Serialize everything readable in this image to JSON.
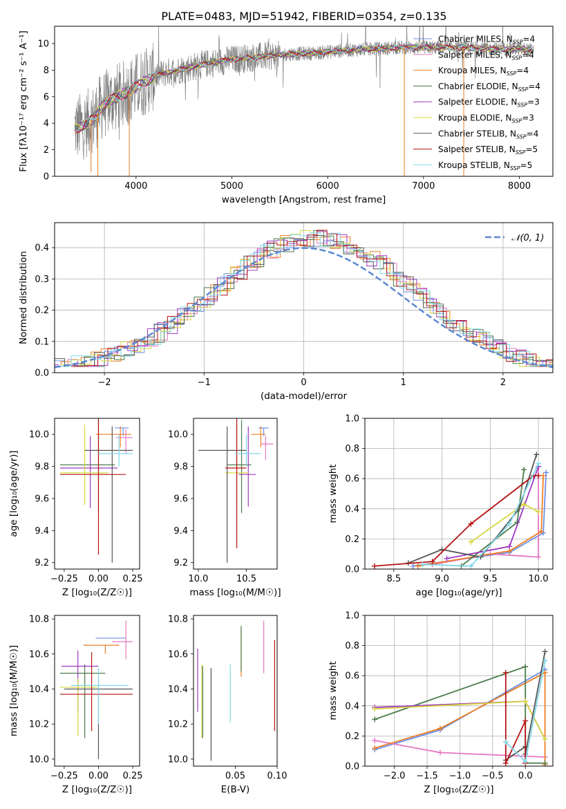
{
  "title": "PLATE=0483, MJD=51942, FIBERID=0354, z=0.135",
  "colors": {
    "Chabrier MILES": "#6b8ee6",
    "Salpeter MILES": "#e377c2",
    "Kroupa MILES": "#ee7e22",
    "Chabrier ELODIE": "#4a7a4a",
    "Salpeter ELODIE": "#9e37c1",
    "Kroupa ELODIE": "#d7d63e",
    "Chabrier STELIB": "#555555",
    "Salpeter STELIB": "#b51212",
    "Kroupa STELIB": "#7fd8e8",
    "data": "#808080"
  },
  "chart_data": [
    {
      "type": "line",
      "panel": "spectrum",
      "title": "PLATE=0483, MJD=51942, FIBERID=0354, z=0.135",
      "xlabel": "wavelength [Angstrom, rest frame]",
      "ylabel": "Flux [fλ10⁻¹⁷ erg cm⁻² s⁻¹ A⁻¹]",
      "xlim": [
        3150,
        8350
      ],
      "ylim": [
        0,
        11.3
      ],
      "xticks": [
        "4000",
        "5000",
        "6000",
        "7000",
        "8000"
      ],
      "yticks": [
        "0",
        "2",
        "4",
        "6",
        "8",
        "10"
      ],
      "legend_position": "right",
      "legend": [
        {
          "name": "Chabrier MILES",
          "label": "Chabrier MILES, N",
          "sub": "SSP",
          "tail": "=4"
        },
        {
          "name": "Salpeter MILES",
          "label": "Salpeter MILES, N",
          "sub": "SSP",
          "tail": "=4"
        },
        {
          "name": "Kroupa MILES",
          "label": "Kroupa MILES, N",
          "sub": "SSP",
          "tail": "=4"
        },
        {
          "name": "Chabrier ELODIE",
          "label": "Chabrier ELODIE, N",
          "sub": "SSP",
          "tail": "=4"
        },
        {
          "name": "Salpeter ELODIE",
          "label": "Salpeter ELODIE, N",
          "sub": "SSP",
          "tail": "=3"
        },
        {
          "name": "Kroupa ELODIE",
          "label": "Kroupa ELODIE, N",
          "sub": "SSP",
          "tail": "=3"
        },
        {
          "name": "Chabrier STELIB",
          "label": "Chabrier STELIB, N",
          "sub": "SSP",
          "tail": "=4"
        },
        {
          "name": "Salpeter STELIB",
          "label": "Salpeter STELIB, N",
          "sub": "SSP",
          "tail": "=5"
        },
        {
          "name": "Kroupa STELIB",
          "label": "Kroupa STELIB, N",
          "sub": "SSP",
          "tail": "=5"
        }
      ],
      "continuum": {
        "x": [
          3350,
          3450,
          3550,
          3650,
          3750,
          3900,
          4050,
          4250,
          4500,
          4750,
          5000,
          5300,
          5600,
          5900,
          6200,
          6500,
          6800,
          7100,
          7400,
          7700,
          8000,
          8100
        ],
        "y": [
          3.6,
          3.8,
          4.3,
          5.3,
          5.8,
          6.3,
          7.0,
          7.7,
          8.1,
          8.5,
          8.8,
          9.0,
          9.2,
          9.3,
          9.5,
          9.6,
          9.7,
          9.7,
          9.7,
          9.6,
          9.6,
          9.5
        ]
      }
    },
    {
      "type": "line",
      "panel": "residual-histogram",
      "xlabel": "(data-model)/error",
      "ylabel": "Normed distribution",
      "xlim": [
        -2.5,
        2.5
      ],
      "ylim": [
        0,
        0.48
      ],
      "xticks": [
        "−2",
        "−1",
        "0",
        "1",
        "2"
      ],
      "yticks": [
        "0.0",
        "0.1",
        "0.2",
        "0.3",
        "0.4"
      ],
      "legend": "𝒩(0, 1)",
      "grid": true
    },
    {
      "type": "scatter",
      "panel": "age-vs-Z",
      "xlabel": "Z [log₁₀(Z/Z☉)]",
      "ylabel": "age  [log₁₀(age/yr)]",
      "xlim": [
        -0.32,
        0.3
      ],
      "ylim": [
        9.16,
        10.1
      ],
      "xticks": [
        "−0.25",
        "0.00",
        "0.25"
      ],
      "yticks": [
        "9.2",
        "9.4",
        "9.6",
        "9.8",
        "10.0"
      ],
      "series": [
        {
          "name": "Chabrier MILES",
          "x": 0.18,
          "xerr": [
            0.06,
            0.04
          ],
          "y": 10.04,
          "yerr": [
            0.05,
            0.0
          ]
        },
        {
          "name": "Salpeter MILES",
          "x": 0.2,
          "xerr": [
            0.07,
            0.05
          ],
          "y": 9.98,
          "yerr": [
            0.1,
            0.05
          ]
        },
        {
          "name": "Kroupa MILES",
          "x": 0.16,
          "xerr": [
            0.18,
            0.08
          ],
          "y": 10.0,
          "yerr": [
            0.08,
            0.05
          ]
        },
        {
          "name": "Chabrier ELODIE",
          "x": 0.0,
          "xerr": [
            0.28,
            0.12
          ],
          "y": 9.81,
          "yerr": [
            0.3,
            0.28
          ]
        },
        {
          "name": "Salpeter ELODIE",
          "x": -0.06,
          "xerr": [
            0.22,
            0.2
          ],
          "y": 9.79,
          "yerr": [
            0.25,
            0.2
          ]
        },
        {
          "name": "Kroupa ELODIE",
          "x": -0.1,
          "xerr": [
            0.18,
            0.17
          ],
          "y": 9.76,
          "yerr": [
            0.2,
            0.3
          ]
        },
        {
          "name": "Chabrier STELIB",
          "x": 0.1,
          "xerr": [
            0.2,
            0.15
          ],
          "y": 9.9,
          "yerr": [
            0.7,
            0.15
          ]
        },
        {
          "name": "Salpeter STELIB",
          "x": 0.0,
          "xerr": [
            0.28,
            0.2
          ],
          "y": 9.75,
          "yerr": [
            0.5,
            0.35
          ]
        },
        {
          "name": "Kroupa STELIB",
          "x": 0.15,
          "xerr": [
            0.15,
            0.1
          ],
          "y": 9.88,
          "yerr": [
            0.08,
            0.12
          ]
        }
      ]
    },
    {
      "type": "scatter",
      "panel": "age-vs-mass",
      "xlabel": "mass [log₁₀(M/M☉)]",
      "ylabel": "",
      "xlim": [
        9.95,
        10.82
      ],
      "ylim": [
        9.16,
        10.1
      ],
      "xticks": [
        "10.0",
        "10.5"
      ],
      "yticks": [
        "9.2",
        "9.4",
        "9.6",
        "9.8",
        "10.0"
      ],
      "series": [
        {
          "name": "Chabrier MILES",
          "x": 10.68,
          "xerr": [
            0.05,
            0.05
          ],
          "y": 10.04,
          "yerr": [
            0.05,
            0.0
          ]
        },
        {
          "name": "Salpeter MILES",
          "x": 10.7,
          "xerr": [
            0.05,
            0.08
          ],
          "y": 9.94,
          "yerr": [
            0.1,
            0.05
          ]
        },
        {
          "name": "Kroupa MILES",
          "x": 10.65,
          "xerr": [
            0.1,
            0.05
          ],
          "y": 10.0,
          "yerr": [
            0.08,
            0.05
          ]
        },
        {
          "name": "Chabrier ELODIE",
          "x": 10.45,
          "xerr": [
            0.15,
            0.1
          ],
          "y": 9.81,
          "yerr": [
            0.3,
            0.28
          ]
        },
        {
          "name": "Salpeter ELODIE",
          "x": 10.52,
          "xerr": [
            0.1,
            0.08
          ],
          "y": 9.75,
          "yerr": [
            0.2,
            0.3
          ]
        },
        {
          "name": "Kroupa ELODIE",
          "x": 10.4,
          "xerr": [
            0.12,
            0.12
          ],
          "y": 9.76,
          "yerr": [
            0.2,
            0.3
          ]
        },
        {
          "name": "Chabrier STELIB",
          "x": 10.3,
          "xerr": [
            0.3,
            0.2
          ],
          "y": 9.9,
          "yerr": [
            0.7,
            0.15
          ]
        },
        {
          "name": "Salpeter STELIB",
          "x": 10.4,
          "xerr": [
            0.12,
            0.1
          ],
          "y": 9.79,
          "yerr": [
            0.5,
            0.35
          ]
        },
        {
          "name": "Kroupa STELIB",
          "x": 10.5,
          "xerr": [
            0.12,
            0.15
          ],
          "y": 9.88,
          "yerr": [
            0.08,
            0.12
          ]
        }
      ]
    },
    {
      "type": "line",
      "panel": "mass-weight-vs-age",
      "xlabel": "age  [log₁₀(age/yr)]",
      "ylabel": "mass weight",
      "xlim": [
        8.2,
        10.15
      ],
      "ylim": [
        0,
        1.0
      ],
      "xticks": [
        "8.5",
        "9.0",
        "9.5",
        "10.0"
      ],
      "yticks": [
        "0.0",
        "0.2",
        "0.4",
        "0.6",
        "0.8",
        "1.0"
      ],
      "grid": true,
      "series": [
        {
          "name": "Chabrier MILES",
          "x": [
            8.7,
            9.7,
            10.05,
            10.08
          ],
          "y": [
            0.02,
            0.11,
            0.24,
            0.64
          ]
        },
        {
          "name": "Salpeter MILES",
          "x": [
            8.9,
            9.5,
            10.0,
            10.0
          ],
          "y": [
            0.03,
            0.1,
            0.08,
            0.68
          ]
        },
        {
          "name": "Kroupa MILES",
          "x": [
            8.75,
            9.7,
            10.03,
            10.05
          ],
          "y": [
            0.02,
            0.12,
            0.25,
            0.62
          ]
        },
        {
          "name": "Chabrier ELODIE",
          "x": [
            9.2,
            9.78,
            9.85
          ],
          "y": [
            0.02,
            0.31,
            0.66
          ]
        },
        {
          "name": "Salpeter ELODIE",
          "x": [
            9.05,
            9.7,
            10.0
          ],
          "y": [
            0.07,
            0.15,
            0.68
          ]
        },
        {
          "name": "Kroupa ELODIE",
          "x": [
            9.3,
            9.85,
            10.0
          ],
          "y": [
            0.18,
            0.43,
            0.38
          ]
        },
        {
          "name": "Chabrier STELIB",
          "x": [
            8.65,
            9.0,
            9.4,
            9.8,
            9.98
          ],
          "y": [
            0.04,
            0.13,
            0.08,
            0.4,
            0.76
          ]
        },
        {
          "name": "Salpeter STELIB",
          "x": [
            8.3,
            8.9,
            9.3,
            9.95,
            10.0
          ],
          "y": [
            0.02,
            0.05,
            0.3,
            0.62,
            0.62
          ]
        },
        {
          "name": "Kroupa STELIB",
          "x": [
            8.8,
            9.3,
            9.7,
            10.0
          ],
          "y": [
            0.03,
            0.02,
            0.3,
            0.7
          ]
        }
      ]
    },
    {
      "type": "scatter",
      "panel": "mass-vs-Z",
      "xlabel": "Z [log₁₀(Z/Z☉)]",
      "ylabel": "mass [log₁₀(M/M☉)]",
      "xlim": [
        -0.32,
        0.3
      ],
      "ylim": [
        9.96,
        10.82
      ],
      "xticks": [
        "−0.25",
        "0.00",
        "0.25"
      ],
      "yticks": [
        "10.0",
        "10.2",
        "10.4",
        "10.6",
        "10.8"
      ],
      "series": [
        {
          "name": "Chabrier MILES",
          "x": 0.1,
          "xerr": [
            0.12,
            0.1
          ],
          "y": 10.69,
          "yerr": [
            0.0,
            0.0
          ]
        },
        {
          "name": "Salpeter MILES",
          "x": 0.2,
          "xerr": [
            0.1,
            0.05
          ],
          "y": 10.67,
          "yerr": [
            0.1,
            0.12
          ]
        },
        {
          "name": "Kroupa MILES",
          "x": 0.05,
          "xerr": [
            0.16,
            0.1
          ],
          "y": 10.65,
          "yerr": [
            0.05,
            0.0
          ]
        },
        {
          "name": "Chabrier ELODIE",
          "x": -0.1,
          "xerr": [
            0.18,
            0.15
          ],
          "y": 10.49,
          "yerr": [
            0.37,
            0.05
          ]
        },
        {
          "name": "Salpeter ELODIE",
          "x": -0.15,
          "xerr": [
            0.12,
            0.15
          ],
          "y": 10.53,
          "yerr": [
            0.26,
            0.09
          ]
        },
        {
          "name": "Kroupa ELODIE",
          "x": -0.15,
          "xerr": [
            0.13,
            0.14
          ],
          "y": 10.41,
          "yerr": [
            0.28,
            0.05
          ]
        },
        {
          "name": "Chabrier STELIB",
          "x": 0.0,
          "xerr": [
            0.25,
            0.25
          ],
          "y": 10.4,
          "yerr": [
            0.4,
            0.05
          ]
        },
        {
          "name": "Salpeter STELIB",
          "x": -0.05,
          "xerr": [
            0.23,
            0.3
          ],
          "y": 10.37,
          "yerr": [
            0.21,
            0.24
          ]
        },
        {
          "name": "Kroupa STELIB",
          "x": 0.0,
          "xerr": [
            0.2,
            0.22
          ],
          "y": 10.42,
          "yerr": [
            0.22,
            0.1
          ]
        }
      ]
    },
    {
      "type": "scatter",
      "panel": "mass-vs-EBV",
      "xlabel": "E(B-V)",
      "ylabel": "",
      "xlim": [
        0.0,
        0.1
      ],
      "ylim": [
        9.96,
        10.82
      ],
      "xticks": [
        "0.05",
        "0.10"
      ],
      "yticks": [
        "10.0",
        "10.2",
        "10.4",
        "10.6",
        "10.8"
      ],
      "series": [
        {
          "name": "Salpeter ELODIE",
          "x": 0.005,
          "ylo": 10.27,
          "yhi": 10.63
        },
        {
          "name": "Kroupa ELODIE",
          "x": 0.01,
          "ylo": 10.12,
          "yhi": 10.54
        },
        {
          "name": "Chabrier ELODIE",
          "x": 0.011,
          "ylo": 10.12,
          "yhi": 10.53
        },
        {
          "name": "Chabrier STELIB",
          "x": 0.021,
          "ylo": 9.99,
          "yhi": 10.52
        },
        {
          "name": "Kroupa STELIB",
          "x": 0.044,
          "ylo": 10.21,
          "yhi": 10.54
        },
        {
          "name": "Kroupa MILES",
          "x": 0.057,
          "ylo": 10.47,
          "yhi": 10.74
        },
        {
          "name": "Chabrier ELODIE",
          "x": 0.057,
          "ylo": 10.5,
          "yhi": 10.76
        },
        {
          "name": "Salpeter MILES",
          "x": 0.084,
          "ylo": 10.49,
          "yhi": 10.79
        },
        {
          "name": "Salpeter STELIB",
          "x": 0.097,
          "ylo": 10.16,
          "yhi": 10.68
        }
      ]
    },
    {
      "type": "line",
      "panel": "mass-weight-vs-Z",
      "xlabel": "Z [log₁₀(Z/Z☉)]",
      "ylabel": "mass weight",
      "xlim": [
        -2.45,
        0.42
      ],
      "ylim": [
        0,
        1.0
      ],
      "xticks": [
        "−2.0",
        "−1.5",
        "−1.0",
        "−0.5",
        "0.0"
      ],
      "yticks": [
        "0.0",
        "0.2",
        "0.4",
        "0.6",
        "0.8",
        "1.0"
      ],
      "grid": true,
      "series": [
        {
          "name": "Chabrier MILES",
          "x": [
            -2.3,
            -1.3,
            0.3
          ],
          "y": [
            0.11,
            0.24,
            0.64
          ]
        },
        {
          "name": "Salpeter MILES",
          "x": [
            -2.3,
            -1.3,
            0.3
          ],
          "y": [
            0.17,
            0.09,
            0.06
          ]
        },
        {
          "name": "Kroupa MILES",
          "x": [
            -2.3,
            -1.3,
            0.3,
            0.3
          ],
          "y": [
            0.12,
            0.25,
            0.62,
            0.01
          ]
        },
        {
          "name": "Chabrier ELODIE",
          "x": [
            -2.3,
            0.0,
            0.0,
            0.3
          ],
          "y": [
            0.31,
            0.66,
            0.02,
            0.02
          ]
        },
        {
          "name": "Salpeter ELODIE",
          "x": [
            -2.3,
            0.0,
            0.3
          ],
          "y": [
            0.39,
            0.43,
            0.18
          ]
        },
        {
          "name": "Kroupa ELODIE",
          "x": [
            -2.3,
            0.0,
            0.3
          ],
          "y": [
            0.38,
            0.43,
            0.18
          ]
        },
        {
          "name": "Chabrier STELIB",
          "x": [
            -0.3,
            0.0,
            0.0,
            0.3
          ],
          "y": [
            0.04,
            0.13,
            0.08,
            0.76
          ]
        },
        {
          "name": "Salpeter STELIB",
          "x": [
            -0.3,
            -0.3,
            0.0,
            0.0
          ],
          "y": [
            0.62,
            0.02,
            0.3,
            0.02
          ]
        },
        {
          "name": "Kroupa STELIB",
          "x": [
            -0.3,
            0.0,
            0.3
          ],
          "y": [
            0.16,
            0.03,
            0.7
          ]
        }
      ]
    }
  ]
}
